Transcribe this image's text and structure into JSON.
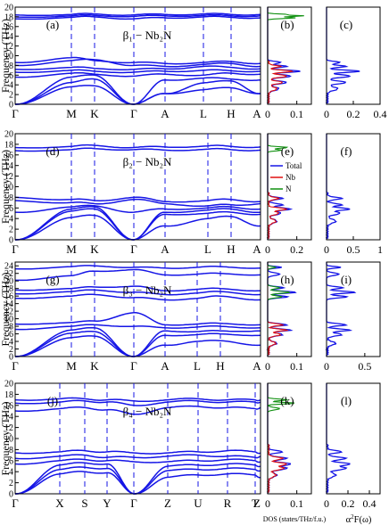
{
  "figure": {
    "ylabel": "Frequency (THz)",
    "dos_xlabel": "DOS (states/THz/f.u.)",
    "a2f_xlabel_main": "α",
    "a2f_xlabel_sup": "2",
    "a2f_xlabel_rest": "F(ω)"
  },
  "legend": [
    "Total",
    "Nb",
    "N"
  ],
  "colors": {
    "band": "#1515e6",
    "total": "#1515e6",
    "nb": "#e01010",
    "n": "#109010"
  },
  "chart_data": [
    {
      "type": "line",
      "panel": "(a)",
      "label": "β₁ − Nb₂N",
      "kpath": [
        "Γ",
        "M",
        "K",
        "Γ",
        "A",
        "L",
        "H",
        "A"
      ],
      "ylim": [
        0,
        20
      ],
      "yticks": [
        "0",
        "2",
        "4",
        "6",
        "8",
        "10",
        "12",
        "14",
        "16",
        "18",
        "20"
      ],
      "dos": {
        "panel": "(b)",
        "xlim": [
          0,
          0.15
        ],
        "xticks": [
          "0",
          "0.1"
        ]
      },
      "a2f": {
        "panel": "(c)",
        "xlim": [
          0,
          0.4
        ],
        "xticks": [
          "0",
          "0.2",
          "0.4"
        ]
      }
    },
    {
      "type": "line",
      "panel": "(d)",
      "label": "β₂ − Nb₂N",
      "kpath": [
        "Γ",
        "M",
        "K",
        "Γ",
        "A",
        "L",
        "H",
        "A"
      ],
      "ylim": [
        0,
        20
      ],
      "yticks": [
        "0",
        "2",
        "4",
        "6",
        "8",
        "10",
        "12",
        "14",
        "16",
        "18",
        "20"
      ],
      "dos": {
        "panel": "(e)",
        "xlim": [
          0,
          0.3
        ],
        "xticks": [
          "0",
          "0.2"
        ]
      },
      "a2f": {
        "panel": "(f)",
        "xlim": [
          0,
          1
        ],
        "xticks": [
          "0",
          "0.5",
          "1"
        ]
      }
    },
    {
      "type": "line",
      "panel": "(g)",
      "label": "β₃ − Nb₂N",
      "kpath": [
        "Γ",
        "M",
        "K",
        "Γ",
        "A",
        "L",
        "H",
        "A"
      ],
      "ylim": [
        0,
        25
      ],
      "yticks": [
        "0",
        "2",
        "4",
        "6",
        "8",
        "10",
        "12",
        "14",
        "16",
        "18",
        "20",
        "22",
        "24"
      ],
      "dos": {
        "panel": "(h)",
        "xlim": [
          0,
          0.15
        ],
        "xticks": [
          "0",
          "0.1"
        ]
      },
      "a2f": {
        "panel": "(i)",
        "xlim": [
          0,
          0.7
        ],
        "xticks": [
          "0",
          "0.5"
        ]
      }
    },
    {
      "type": "line",
      "panel": "(j)",
      "label": "β₄ − Nb₂N",
      "kpath": [
        "Γ",
        "X",
        "S",
        "Y",
        "Γ",
        "Z",
        "U",
        "R",
        "T",
        "Z"
      ],
      "ylim": [
        0,
        20
      ],
      "yticks": [
        "0",
        "2",
        "4",
        "6",
        "8",
        "10",
        "12",
        "14",
        "16",
        "18",
        "20"
      ],
      "dos": {
        "panel": "(k)",
        "xlim": [
          0,
          0.15
        ],
        "xticks": [
          "0",
          "0.1"
        ]
      },
      "a2f": {
        "panel": "(l)",
        "xlim": [
          0,
          0.5
        ],
        "xticks": [
          "0",
          "0.2",
          "0.4"
        ]
      }
    }
  ]
}
